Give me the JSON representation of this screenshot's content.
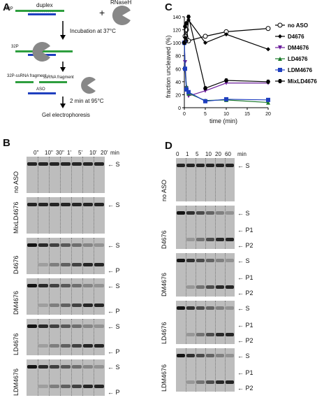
{
  "panels": {
    "A": "A",
    "B": "B",
    "C": "C",
    "D": "D"
  },
  "schematic": {
    "p32_top": "32P",
    "duplex": "duplex",
    "plus": "+",
    "rnaseh": "RNaseH",
    "step1": "Incubation at 37°C",
    "p32_mid": "32P",
    "p32_frag": "32P-ssRNA fragment",
    "ssrna_frag": "ssRNA fragment",
    "aso": "ASO",
    "step2": "2 min at 95°C",
    "step3": "Gel electrophoresis"
  },
  "gelB": {
    "times": [
      "0''",
      "10''",
      "30''",
      "1'",
      "5'",
      "10'",
      "20'"
    ],
    "unit": "min",
    "rows": [
      {
        "name": "no ASO",
        "arrows": [
          "S"
        ]
      },
      {
        "name": "MixLD4676",
        "arrows": [
          "S"
        ]
      },
      {
        "name": "D4676",
        "arrows": [
          "S",
          "P"
        ]
      },
      {
        "name": "DM4676",
        "arrows": [
          "S",
          "P"
        ]
      },
      {
        "name": "LD4676",
        "arrows": [
          "S",
          "P"
        ]
      },
      {
        "name": "LDM4676",
        "arrows": [
          "S",
          "P"
        ]
      }
    ]
  },
  "gelD": {
    "times": [
      "0",
      "1",
      "5",
      "10",
      "20",
      "60"
    ],
    "unit": "min",
    "rows": [
      {
        "name": "no ASO",
        "arrows": [
          "S"
        ]
      },
      {
        "name": "D4676",
        "arrows": [
          "S",
          "P1",
          "P2"
        ]
      },
      {
        "name": "DM4676",
        "arrows": [
          "S",
          "P1",
          "P2"
        ]
      },
      {
        "name": "LD4676",
        "arrows": [
          "S",
          "P1",
          "P2"
        ]
      },
      {
        "name": "LDM4676",
        "arrows": [
          "S",
          "P1",
          "P2"
        ]
      }
    ]
  },
  "chart_data": {
    "type": "line",
    "xlabel": "time (min)",
    "ylabel": "fraction uncleaved (%)",
    "xlim": [
      0,
      20
    ],
    "ylim": [
      0,
      140
    ],
    "xticks": [
      0,
      5,
      10,
      15,
      20
    ],
    "yticks": [
      0,
      20,
      40,
      60,
      80,
      100,
      120,
      140
    ],
    "legend": "right",
    "x": [
      0,
      0.1667,
      0.5,
      1,
      5,
      10,
      20
    ],
    "series": [
      {
        "name": "no ASO",
        "color": "#000000",
        "marker": "circle-open",
        "values": [
          100,
          110,
          120,
          103,
          110,
          117,
          122
        ]
      },
      {
        "name": "D4676",
        "color": "#000000",
        "marker": "diamond",
        "values": [
          100,
          108,
          103,
          135,
          100,
          113,
          90
        ]
      },
      {
        "name": "DM4676",
        "color": "#6a1b9a",
        "marker": "triangle-down",
        "values": [
          100,
          70,
          30,
          18,
          26,
          38,
          38
        ]
      },
      {
        "name": "LD4676",
        "color": "#1b7a2a",
        "marker": "triangle",
        "values": [
          100,
          62,
          33,
          22,
          11,
          12,
          8
        ]
      },
      {
        "name": "LDM4676",
        "color": "#1f3fbf",
        "marker": "square",
        "values": [
          100,
          60,
          28,
          24,
          10,
          13,
          12
        ]
      },
      {
        "name": "MixLD4676",
        "color": "#000000",
        "marker": "hexagon",
        "values": [
          100,
          125,
          130,
          140,
          30,
          42,
          40
        ]
      }
    ]
  }
}
